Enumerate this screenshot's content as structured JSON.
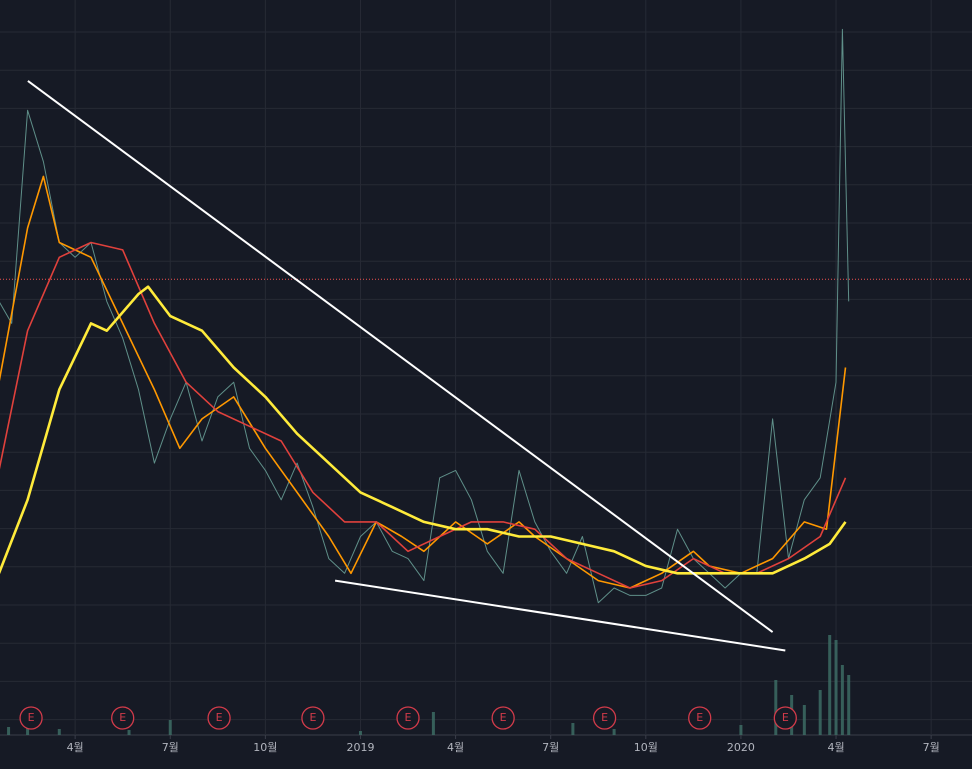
{
  "chart_data": {
    "type": "line",
    "xlim": [
      0.63,
      30.91
    ],
    "ylim": [
      0,
      100
    ],
    "xticks": [
      {
        "value": 3,
        "label": "4월"
      },
      {
        "value": 6,
        "label": "7월"
      },
      {
        "value": 9,
        "label": "10월"
      },
      {
        "value": 12,
        "label": "2019"
      },
      {
        "value": 15,
        "label": "4월"
      },
      {
        "value": 18,
        "label": "7월"
      },
      {
        "value": 21,
        "label": "10월"
      },
      {
        "value": 24,
        "label": "2020"
      },
      {
        "value": 27,
        "label": "4월"
      },
      {
        "value": 30,
        "label": "7월"
      }
    ],
    "grid": true,
    "series": [
      {
        "color": "#5f8f89",
        "width": 1,
        "x": [
          0.6,
          1,
          1.5,
          2,
          2.5,
          3,
          3.5,
          4,
          4.5,
          5,
          5.5,
          6,
          6.5,
          7,
          7.5,
          8,
          8.5,
          9,
          9.5,
          10,
          10.5,
          11,
          11.5,
          12,
          12.5,
          13,
          13.5,
          14,
          14.5,
          15,
          15.5,
          16,
          16.5,
          17,
          17.5,
          18,
          18.5,
          19,
          19.5,
          20,
          20.5,
          21,
          21.5,
          22,
          22.5,
          23,
          23.5,
          24,
          24.5,
          25,
          25.5,
          26,
          26.5,
          27,
          27.2,
          27.4
        ],
        "values": [
          59,
          56,
          85,
          78,
          67,
          65,
          67,
          59,
          54,
          47,
          37,
          43,
          48,
          40,
          46,
          48,
          39,
          36,
          32,
          37,
          31,
          24,
          22,
          27,
          29,
          25,
          24,
          21,
          35,
          36,
          32,
          25,
          22,
          36,
          29,
          25,
          22,
          27,
          18,
          20,
          19,
          19,
          20,
          28,
          24,
          22,
          20,
          22,
          22,
          43,
          24,
          32,
          35,
          48,
          96,
          59
        ]
      },
      {
        "color": "#ff9800",
        "width": 1.6,
        "x": [
          0.6,
          1.5,
          2,
          2.5,
          3,
          3.5,
          4.5,
          5.5,
          6.3,
          7,
          8,
          9,
          10,
          11,
          11.7,
          12.5,
          13.3,
          14,
          15,
          16,
          17,
          17.5,
          18.5,
          19.5,
          20.5,
          21.5,
          22.5,
          23,
          24,
          25,
          26,
          26.7,
          27.3
        ],
        "values": [
          48,
          69,
          76,
          67,
          66,
          65,
          56,
          47,
          39,
          43,
          46,
          39,
          33,
          27,
          22,
          29,
          27,
          25,
          29,
          26,
          29,
          27,
          24,
          21,
          20,
          22,
          25,
          23,
          22,
          24,
          29,
          28,
          50
        ]
      },
      {
        "color": "#e0413c",
        "width": 1.6,
        "x": [
          0.6,
          1.5,
          2.5,
          3.5,
          4.5,
          5.5,
          6.5,
          7.5,
          8.5,
          9.5,
          10.5,
          11.5,
          12.5,
          13.5,
          14.5,
          15.5,
          16.5,
          17.5,
          18.5,
          19.5,
          20.5,
          21.5,
          22.5,
          23.5,
          24.5,
          25.5,
          26.5,
          27.3
        ],
        "values": [
          36,
          55,
          65,
          67,
          66,
          56,
          48,
          44,
          42,
          40,
          33,
          29,
          29,
          25,
          27,
          29,
          29,
          28,
          24,
          22,
          20,
          21,
          24,
          22,
          22,
          24,
          27,
          35
        ]
      },
      {
        "color": "#ffeb3b",
        "width": 2.6,
        "x": [
          0.6,
          1.5,
          2.5,
          3.5,
          4,
          5,
          5.3,
          6,
          7,
          8,
          9,
          10,
          11,
          12,
          13,
          14,
          15,
          16,
          17,
          18,
          19,
          20,
          21,
          22,
          23,
          24,
          25,
          26,
          26.8,
          27.3
        ],
        "values": [
          22,
          32,
          47,
          56,
          55,
          60,
          61,
          57,
          55,
          50,
          46,
          41,
          37,
          33,
          31,
          29,
          28,
          28,
          27,
          27,
          26,
          25,
          23,
          22,
          22,
          22,
          22,
          24,
          26,
          29
        ]
      }
    ],
    "trendlines": [
      {
        "color": "#ffffff",
        "x": [
          1.51,
          25.0
        ],
        "values": [
          89,
          14
        ]
      },
      {
        "color": "#ffffff",
        "x": [
          11.2,
          25.4
        ],
        "values": [
          21,
          11.5
        ]
      }
    ],
    "price_line": {
      "value": 62,
      "color": "#f05350"
    },
    "volume": {
      "color": "#3f7068",
      "x": [
        0.9,
        1.5,
        2.5,
        4.7,
        6,
        12,
        14.3,
        18.7,
        20,
        24,
        25.1,
        25.6,
        26,
        26.5,
        26.8,
        27,
        27.2,
        27.4
      ],
      "values": [
        8,
        10,
        6,
        5,
        15,
        4,
        23,
        12,
        6,
        10,
        55,
        40,
        30,
        45,
        100,
        95,
        70,
        60
      ]
    },
    "earnings": {
      "label": "E",
      "color": "#d23b4a",
      "x": [
        1.61,
        4.5,
        7.54,
        10.5,
        13.5,
        16.5,
        19.7,
        22.7,
        25.4
      ]
    }
  }
}
